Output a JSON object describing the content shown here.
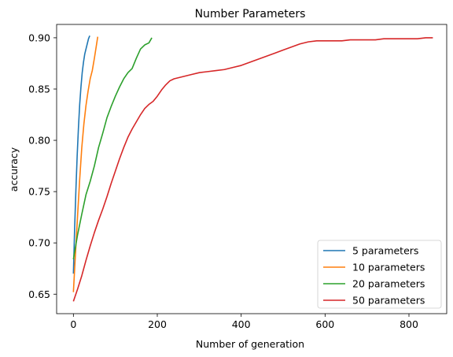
{
  "chart_data": {
    "type": "line",
    "title": "Number Parameters",
    "xlabel": "Number of generation",
    "ylabel": "accuracy",
    "xlim": [
      -40,
      890
    ],
    "ylim": [
      0.631,
      0.913
    ],
    "x_ticks": [
      0,
      200,
      400,
      600,
      800
    ],
    "x_tick_labels": [
      "0",
      "200",
      "400",
      "600",
      "800"
    ],
    "y_ticks": [
      0.65,
      0.7,
      0.75,
      0.8,
      0.85,
      0.9
    ],
    "y_tick_labels": [
      "0.65",
      "0.70",
      "0.75",
      "0.80",
      "0.85",
      "0.90"
    ],
    "grid": false,
    "legend_position": "bottom-right",
    "series": [
      {
        "name": "5 parameters",
        "color": "#1f77b4",
        "x": [
          0,
          3,
          6,
          9,
          12,
          15,
          18,
          21,
          24,
          27,
          30,
          33,
          36,
          39
        ],
        "y": [
          0.67,
          0.715,
          0.752,
          0.785,
          0.812,
          0.835,
          0.852,
          0.866,
          0.876,
          0.884,
          0.889,
          0.894,
          0.899,
          0.902
        ]
      },
      {
        "name": "10 parameters",
        "color": "#ff7f0e",
        "x": [
          0,
          5,
          10,
          15,
          20,
          25,
          30,
          35,
          40,
          45,
          50,
          55,
          58
        ],
        "y": [
          0.652,
          0.69,
          0.727,
          0.762,
          0.793,
          0.816,
          0.834,
          0.848,
          0.86,
          0.868,
          0.88,
          0.893,
          0.901
        ]
      },
      {
        "name": "20 parameters",
        "color": "#2ca02c",
        "x": [
          0,
          10,
          20,
          30,
          40,
          50,
          60,
          70,
          80,
          90,
          100,
          110,
          120,
          130,
          140,
          150,
          160,
          170,
          180,
          187
        ],
        "y": [
          0.684,
          0.708,
          0.728,
          0.747,
          0.76,
          0.775,
          0.793,
          0.807,
          0.822,
          0.833,
          0.843,
          0.852,
          0.86,
          0.866,
          0.87,
          0.88,
          0.889,
          0.893,
          0.895,
          0.9
        ]
      },
      {
        "name": "50 parameters",
        "color": "#d62728",
        "x": [
          0,
          10,
          20,
          30,
          40,
          50,
          60,
          70,
          80,
          90,
          100,
          110,
          120,
          130,
          140,
          150,
          160,
          170,
          180,
          190,
          200,
          210,
          220,
          230,
          240,
          260,
          280,
          300,
          320,
          340,
          360,
          380,
          400,
          420,
          440,
          460,
          480,
          500,
          520,
          540,
          560,
          580,
          600,
          620,
          640,
          660,
          680,
          700,
          720,
          740,
          760,
          780,
          800,
          820,
          840,
          857
        ],
        "y": [
          0.643,
          0.655,
          0.668,
          0.683,
          0.697,
          0.71,
          0.722,
          0.733,
          0.745,
          0.758,
          0.77,
          0.782,
          0.793,
          0.803,
          0.811,
          0.818,
          0.825,
          0.831,
          0.835,
          0.838,
          0.843,
          0.849,
          0.854,
          0.858,
          0.86,
          0.862,
          0.864,
          0.866,
          0.867,
          0.868,
          0.869,
          0.871,
          0.873,
          0.876,
          0.879,
          0.882,
          0.885,
          0.888,
          0.891,
          0.894,
          0.896,
          0.897,
          0.897,
          0.897,
          0.897,
          0.898,
          0.898,
          0.898,
          0.898,
          0.899,
          0.899,
          0.899,
          0.899,
          0.899,
          0.9,
          0.9
        ]
      }
    ]
  }
}
